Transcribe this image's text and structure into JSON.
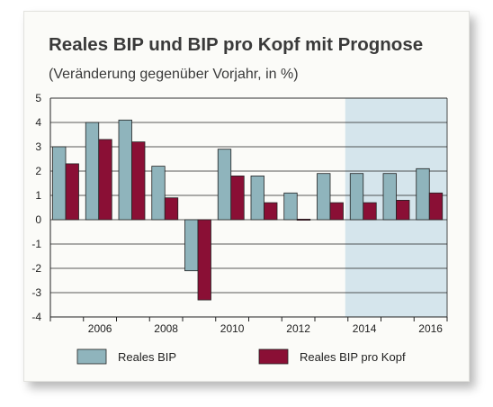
{
  "title": "Reales BIP und BIP pro Kopf mit Prognose",
  "subtitle": "(Veränderung gegenüber Vorjahr, in %)",
  "colors": {
    "bip": "#8fb4bc",
    "bip_pro_kopf": "#8a0f35",
    "forecast_band": "#d5e5ec"
  },
  "chart_data": {
    "type": "bar",
    "title": "Reales BIP und BIP pro Kopf mit Prognose",
    "subtitle": "(Veränderung gegenüber Vorjahr, in %)",
    "categories": [
      2005,
      2006,
      2007,
      2008,
      2009,
      2010,
      2011,
      2012,
      2013,
      2014,
      2015,
      2016
    ],
    "x_tick_labels": [
      "2006",
      "2008",
      "2010",
      "2012",
      "2014",
      "2016"
    ],
    "y_tick_labels": [
      "5",
      "4",
      "3",
      "2",
      "1",
      "0",
      "-1",
      "-2",
      "-3",
      "-4"
    ],
    "ylim": [
      -4,
      5
    ],
    "grid": true,
    "forecast_shaded_from": 2014,
    "legend_position": "bottom",
    "series": [
      {
        "name": "Reales BIP",
        "values": [
          3.0,
          4.0,
          4.1,
          2.2,
          -2.1,
          2.9,
          1.8,
          1.1,
          1.9,
          1.9,
          1.9,
          2.1
        ]
      },
      {
        "name": "Reales BIP pro Kopf",
        "values": [
          2.3,
          3.3,
          3.2,
          0.9,
          -3.3,
          1.8,
          0.7,
          0.0,
          0.7,
          0.7,
          0.8,
          1.1
        ]
      }
    ]
  }
}
